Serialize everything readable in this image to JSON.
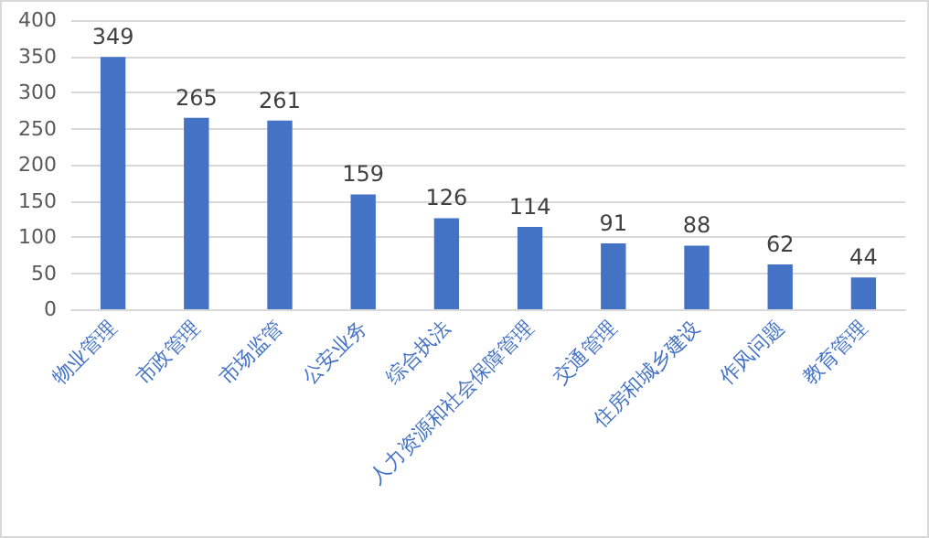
{
  "chart_data": {
    "type": "bar",
    "categories": [
      "物业管理",
      "市政管理",
      "市场监管",
      "公安业务",
      "综合执法",
      "人力资源和社会保障管理",
      "交通管理",
      "住房和城乡建设",
      "作风问题",
      "教育管理"
    ],
    "values": [
      349,
      265,
      261,
      159,
      126,
      114,
      91,
      88,
      62,
      44
    ],
    "color": "#4472c4",
    "ylim": [
      0,
      400
    ],
    "yticks": [
      0,
      50,
      100,
      150,
      200,
      250,
      300,
      350,
      400
    ],
    "grid": "y",
    "data_labels": true
  }
}
